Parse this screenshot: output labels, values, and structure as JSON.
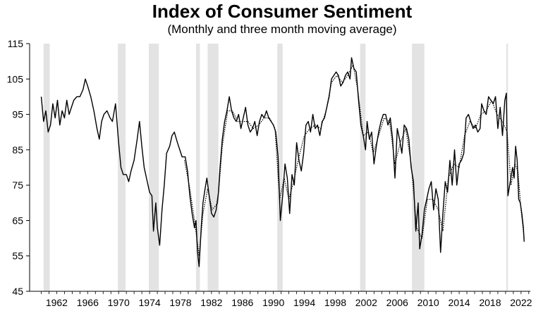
{
  "chart_data": {
    "type": "line",
    "title": "Index of Consumer Sentiment",
    "subtitle": "(Monthly and three month moving average)",
    "xlabel": "",
    "ylabel": "",
    "ylim": [
      45,
      115
    ],
    "xlim": [
      1958.5,
      2023.2
    ],
    "yticks": [
      115,
      105,
      95,
      85,
      75,
      65,
      55,
      45
    ],
    "xticks": [
      1962,
      1966,
      1970,
      1974,
      1978,
      1982,
      1986,
      1990,
      1994,
      1998,
      2002,
      2006,
      2010,
      2014,
      2018,
      2022
    ],
    "recessions": [
      [
        1960.3,
        1961.1
      ],
      [
        1969.9,
        1970.9
      ],
      [
        1973.9,
        1975.2
      ],
      [
        1980.0,
        1980.5
      ],
      [
        1981.5,
        1982.9
      ],
      [
        1990.5,
        1991.2
      ],
      [
        2001.2,
        2001.9
      ],
      [
        2007.9,
        2009.5
      ],
      [
        2020.1,
        2020.3
      ]
    ],
    "series": [
      {
        "name": "Monthly",
        "style": "solid",
        "points": [
          [
            1960.0,
            100
          ],
          [
            1960.3,
            93
          ],
          [
            1960.6,
            96
          ],
          [
            1960.9,
            90
          ],
          [
            1961.2,
            92
          ],
          [
            1961.5,
            98
          ],
          [
            1961.8,
            94
          ],
          [
            1962.1,
            99
          ],
          [
            1962.4,
            92
          ],
          [
            1962.7,
            96
          ],
          [
            1963.0,
            94
          ],
          [
            1963.3,
            99
          ],
          [
            1963.6,
            95
          ],
          [
            1963.9,
            97
          ],
          [
            1964.2,
            99
          ],
          [
            1964.6,
            100
          ],
          [
            1965.0,
            100
          ],
          [
            1965.4,
            102
          ],
          [
            1965.7,
            105
          ],
          [
            1966.0,
            103
          ],
          [
            1966.4,
            100
          ],
          [
            1966.8,
            96
          ],
          [
            1967.2,
            91
          ],
          [
            1967.5,
            88
          ],
          [
            1967.8,
            93
          ],
          [
            1968.1,
            95
          ],
          [
            1968.5,
            96
          ],
          [
            1968.9,
            94
          ],
          [
            1969.2,
            93
          ],
          [
            1969.6,
            98
          ],
          [
            1970.0,
            87
          ],
          [
            1970.3,
            80
          ],
          [
            1970.6,
            78
          ],
          [
            1971.0,
            78
          ],
          [
            1971.3,
            76
          ],
          [
            1971.6,
            79
          ],
          [
            1972.0,
            82
          ],
          [
            1972.4,
            88
          ],
          [
            1972.7,
            93
          ],
          [
            1973.0,
            86
          ],
          [
            1973.3,
            80
          ],
          [
            1973.7,
            76
          ],
          [
            1974.0,
            73
          ],
          [
            1974.3,
            72
          ],
          [
            1974.5,
            62
          ],
          [
            1974.8,
            70
          ],
          [
            1975.0,
            63
          ],
          [
            1975.3,
            58
          ],
          [
            1975.6,
            68
          ],
          [
            1975.9,
            75
          ],
          [
            1976.2,
            84
          ],
          [
            1976.6,
            86
          ],
          [
            1976.9,
            89
          ],
          [
            1977.2,
            90
          ],
          [
            1977.6,
            87
          ],
          [
            1977.9,
            85
          ],
          [
            1978.2,
            83
          ],
          [
            1978.6,
            83
          ],
          [
            1978.9,
            79
          ],
          [
            1979.2,
            72
          ],
          [
            1979.5,
            67
          ],
          [
            1979.8,
            63
          ],
          [
            1980.0,
            65
          ],
          [
            1980.2,
            56
          ],
          [
            1980.4,
            52
          ],
          [
            1980.7,
            64
          ],
          [
            1980.9,
            70
          ],
          [
            1981.1,
            73
          ],
          [
            1981.4,
            77
          ],
          [
            1981.7,
            72
          ],
          [
            1982.0,
            67
          ],
          [
            1982.3,
            66
          ],
          [
            1982.6,
            68
          ],
          [
            1982.9,
            73
          ],
          [
            1983.1,
            80
          ],
          [
            1983.4,
            88
          ],
          [
            1983.7,
            93
          ],
          [
            1984.0,
            96
          ],
          [
            1984.3,
            100
          ],
          [
            1984.6,
            96
          ],
          [
            1984.9,
            94
          ],
          [
            1985.2,
            93
          ],
          [
            1985.5,
            95
          ],
          [
            1985.8,
            91
          ],
          [
            1986.1,
            94
          ],
          [
            1986.4,
            97
          ],
          [
            1986.7,
            92
          ],
          [
            1987.0,
            90
          ],
          [
            1987.3,
            91
          ],
          [
            1987.6,
            93
          ],
          [
            1987.9,
            89
          ],
          [
            1988.2,
            93
          ],
          [
            1988.5,
            95
          ],
          [
            1988.8,
            94
          ],
          [
            1989.1,
            96
          ],
          [
            1989.4,
            94
          ],
          [
            1989.7,
            93
          ],
          [
            1990.0,
            92
          ],
          [
            1990.3,
            90
          ],
          [
            1990.6,
            83
          ],
          [
            1990.9,
            65
          ],
          [
            1991.2,
            72
          ],
          [
            1991.5,
            81
          ],
          [
            1991.8,
            77
          ],
          [
            1992.1,
            67
          ],
          [
            1992.4,
            78
          ],
          [
            1992.7,
            75
          ],
          [
            1993.0,
            87
          ],
          [
            1993.3,
            82
          ],
          [
            1993.6,
            79
          ],
          [
            1993.9,
            84
          ],
          [
            1994.2,
            92
          ],
          [
            1994.5,
            93
          ],
          [
            1994.8,
            90
          ],
          [
            1995.1,
            95
          ],
          [
            1995.4,
            91
          ],
          [
            1995.7,
            92
          ],
          [
            1996.0,
            89
          ],
          [
            1996.3,
            93
          ],
          [
            1996.6,
            94
          ],
          [
            1996.9,
            97
          ],
          [
            1997.2,
            100
          ],
          [
            1997.5,
            105
          ],
          [
            1997.8,
            106
          ],
          [
            1998.1,
            107
          ],
          [
            1998.4,
            106
          ],
          [
            1998.7,
            103
          ],
          [
            1999.0,
            104
          ],
          [
            1999.3,
            106
          ],
          [
            1999.6,
            107
          ],
          [
            1999.9,
            105
          ],
          [
            2000.1,
            111
          ],
          [
            2000.4,
            108
          ],
          [
            2000.7,
            107
          ],
          [
            2001.0,
            99
          ],
          [
            2001.3,
            92
          ],
          [
            2001.6,
            89
          ],
          [
            2001.9,
            85
          ],
          [
            2002.1,
            93
          ],
          [
            2002.4,
            88
          ],
          [
            2002.7,
            90
          ],
          [
            2003.0,
            81
          ],
          [
            2003.3,
            86
          ],
          [
            2003.6,
            90
          ],
          [
            2003.9,
            93
          ],
          [
            2004.2,
            95
          ],
          [
            2004.5,
            95
          ],
          [
            2004.8,
            92
          ],
          [
            2005.1,
            94
          ],
          [
            2005.4,
            88
          ],
          [
            2005.7,
            77
          ],
          [
            2006.0,
            91
          ],
          [
            2006.3,
            88
          ],
          [
            2006.6,
            84
          ],
          [
            2006.9,
            92
          ],
          [
            2007.2,
            91
          ],
          [
            2007.5,
            88
          ],
          [
            2007.8,
            80
          ],
          [
            2008.1,
            76
          ],
          [
            2008.4,
            62
          ],
          [
            2008.7,
            70
          ],
          [
            2008.9,
            57
          ],
          [
            2009.2,
            61
          ],
          [
            2009.5,
            68
          ],
          [
            2009.8,
            71
          ],
          [
            2010.1,
            74
          ],
          [
            2010.4,
            76
          ],
          [
            2010.7,
            68
          ],
          [
            2011.0,
            74
          ],
          [
            2011.3,
            71
          ],
          [
            2011.6,
            56
          ],
          [
            2011.9,
            67
          ],
          [
            2012.2,
            76
          ],
          [
            2012.5,
            73
          ],
          [
            2012.8,
            82
          ],
          [
            2013.1,
            75
          ],
          [
            2013.4,
            85
          ],
          [
            2013.7,
            75
          ],
          [
            2014.0,
            81
          ],
          [
            2014.3,
            82
          ],
          [
            2014.6,
            84
          ],
          [
            2014.9,
            94
          ],
          [
            2015.2,
            95
          ],
          [
            2015.5,
            93
          ],
          [
            2015.8,
            91
          ],
          [
            2016.1,
            92
          ],
          [
            2016.4,
            90
          ],
          [
            2016.7,
            91
          ],
          [
            2016.9,
            98
          ],
          [
            2017.2,
            96
          ],
          [
            2017.5,
            95
          ],
          [
            2017.8,
            100
          ],
          [
            2018.1,
            99
          ],
          [
            2018.4,
            98
          ],
          [
            2018.7,
            100
          ],
          [
            2019.0,
            91
          ],
          [
            2019.3,
            97
          ],
          [
            2019.6,
            89
          ],
          [
            2019.9,
            99
          ],
          [
            2020.1,
            101
          ],
          [
            2020.3,
            72
          ],
          [
            2020.6,
            76
          ],
          [
            2020.9,
            80
          ],
          [
            2021.1,
            77
          ],
          [
            2021.3,
            86
          ],
          [
            2021.5,
            82
          ],
          [
            2021.7,
            71
          ],
          [
            2021.9,
            70
          ],
          [
            2022.1,
            67
          ],
          [
            2022.3,
            63
          ],
          [
            2022.4,
            59
          ]
        ]
      },
      {
        "name": "Three month moving average",
        "style": "dotted",
        "points": [
          [
            1978.5,
            82
          ],
          [
            1979.2,
            74
          ],
          [
            1979.8,
            65
          ],
          [
            1980.4,
            55
          ],
          [
            1980.9,
            67
          ],
          [
            1981.5,
            74
          ],
          [
            1982.1,
            68
          ],
          [
            1982.8,
            70
          ],
          [
            1983.4,
            86
          ],
          [
            1984.1,
            96
          ],
          [
            1984.7,
            96
          ],
          [
            1985.4,
            93
          ],
          [
            1986.0,
            93
          ],
          [
            1986.7,
            93
          ],
          [
            1987.4,
            91
          ],
          [
            1988.1,
            92
          ],
          [
            1988.8,
            94
          ],
          [
            1989.5,
            94
          ],
          [
            1990.2,
            91
          ],
          [
            1990.8,
            71
          ],
          [
            1991.4,
            77
          ],
          [
            1992.0,
            71
          ],
          [
            1992.6,
            76
          ],
          [
            1993.3,
            83
          ],
          [
            1994.0,
            89
          ],
          [
            1994.7,
            91
          ],
          [
            1995.4,
            92
          ],
          [
            1996.1,
            91
          ],
          [
            1996.8,
            96
          ],
          [
            1997.5,
            104
          ],
          [
            1998.2,
            106
          ],
          [
            1998.9,
            104
          ],
          [
            1999.6,
            106
          ],
          [
            2000.3,
            109
          ],
          [
            2000.9,
            102
          ],
          [
            2001.6,
            89
          ],
          [
            2002.3,
            90
          ],
          [
            2002.9,
            84
          ],
          [
            2003.6,
            89
          ],
          [
            2004.3,
            94
          ],
          [
            2005.0,
            93
          ],
          [
            2005.7,
            81
          ],
          [
            2006.4,
            87
          ],
          [
            2007.1,
            91
          ],
          [
            2007.8,
            81
          ],
          [
            2008.5,
            63
          ],
          [
            2009.2,
            60
          ],
          [
            2009.9,
            71
          ],
          [
            2010.6,
            71
          ],
          [
            2011.3,
            68
          ],
          [
            2011.9,
            62
          ],
          [
            2012.6,
            77
          ],
          [
            2013.3,
            81
          ],
          [
            2014.0,
            80
          ],
          [
            2014.7,
            89
          ],
          [
            2015.4,
            93
          ],
          [
            2016.1,
            91
          ],
          [
            2016.8,
            95
          ],
          [
            2017.5,
            96
          ],
          [
            2018.2,
            99
          ],
          [
            2018.9,
            95
          ],
          [
            2019.6,
            93
          ],
          [
            2020.2,
            90
          ],
          [
            2020.7,
            75
          ],
          [
            2021.2,
            81
          ],
          [
            2021.6,
            79
          ],
          [
            2022.0,
            68
          ],
          [
            2022.4,
            60
          ]
        ]
      }
    ]
  }
}
